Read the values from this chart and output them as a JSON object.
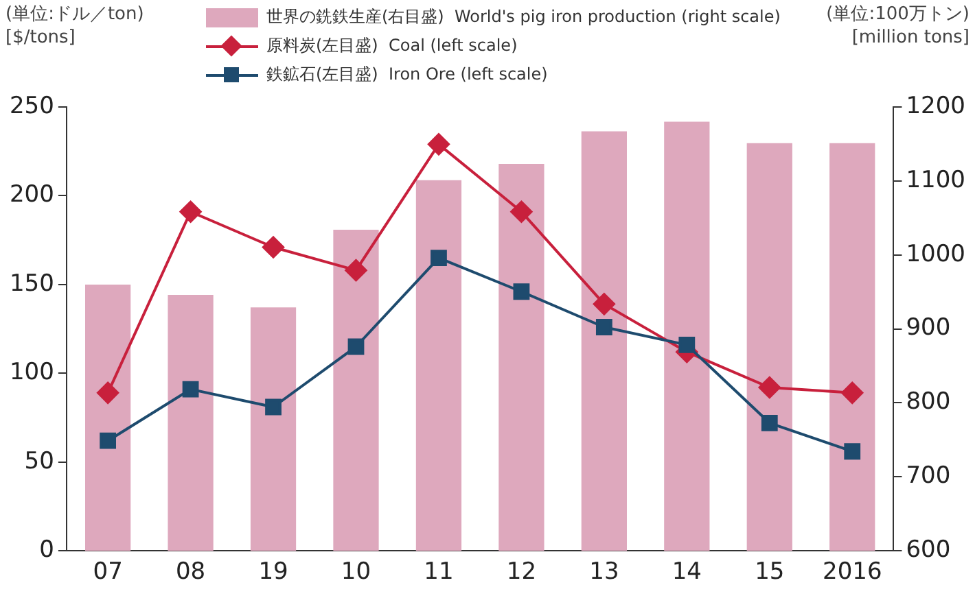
{
  "chart_data": {
    "type": "bar",
    "categories": [
      "07",
      "08",
      "19",
      "10",
      "11",
      "12",
      "13",
      "14",
      "15",
      "2016"
    ],
    "ylabel": "(単位:ドル／ton)\n[$/tons]",
    "y2label": "(単位:100万トン)\n[million tons]",
    "series": [
      {
        "name": "世界の銑鉄生産(右目盛)  World's pig iron production (right scale)",
        "axis": "y2",
        "color": "#dea8bd",
        "values": [
          960,
          946,
          929,
          1034,
          1101,
          1123,
          1167,
          1180,
          1151,
          1151
        ]
      },
      {
        "name": "原料炭(左目盛)  Coal (left scale)",
        "type": "line",
        "axis": "y",
        "color": "#c8203c",
        "marker": "diamond",
        "values": [
          89,
          191,
          171,
          158,
          229,
          191,
          139,
          112,
          92,
          89
        ]
      },
      {
        "name": "鉄鉱石(左目盛)  Iron Ore (left scale)",
        "type": "line",
        "axis": "y",
        "color": "#1e4b6e",
        "marker": "square",
        "values": [
          62,
          91,
          81,
          115,
          165,
          146,
          126,
          116,
          72,
          56
        ]
      }
    ],
    "ylim": [
      0,
      250
    ],
    "yticks": [
      0,
      50,
      100,
      150,
      200,
      250
    ],
    "y2lim": [
      600,
      1200
    ],
    "y2ticks": [
      600,
      700,
      800,
      900,
      1000,
      1100,
      1200
    ],
    "grid": false,
    "legend": "top"
  }
}
